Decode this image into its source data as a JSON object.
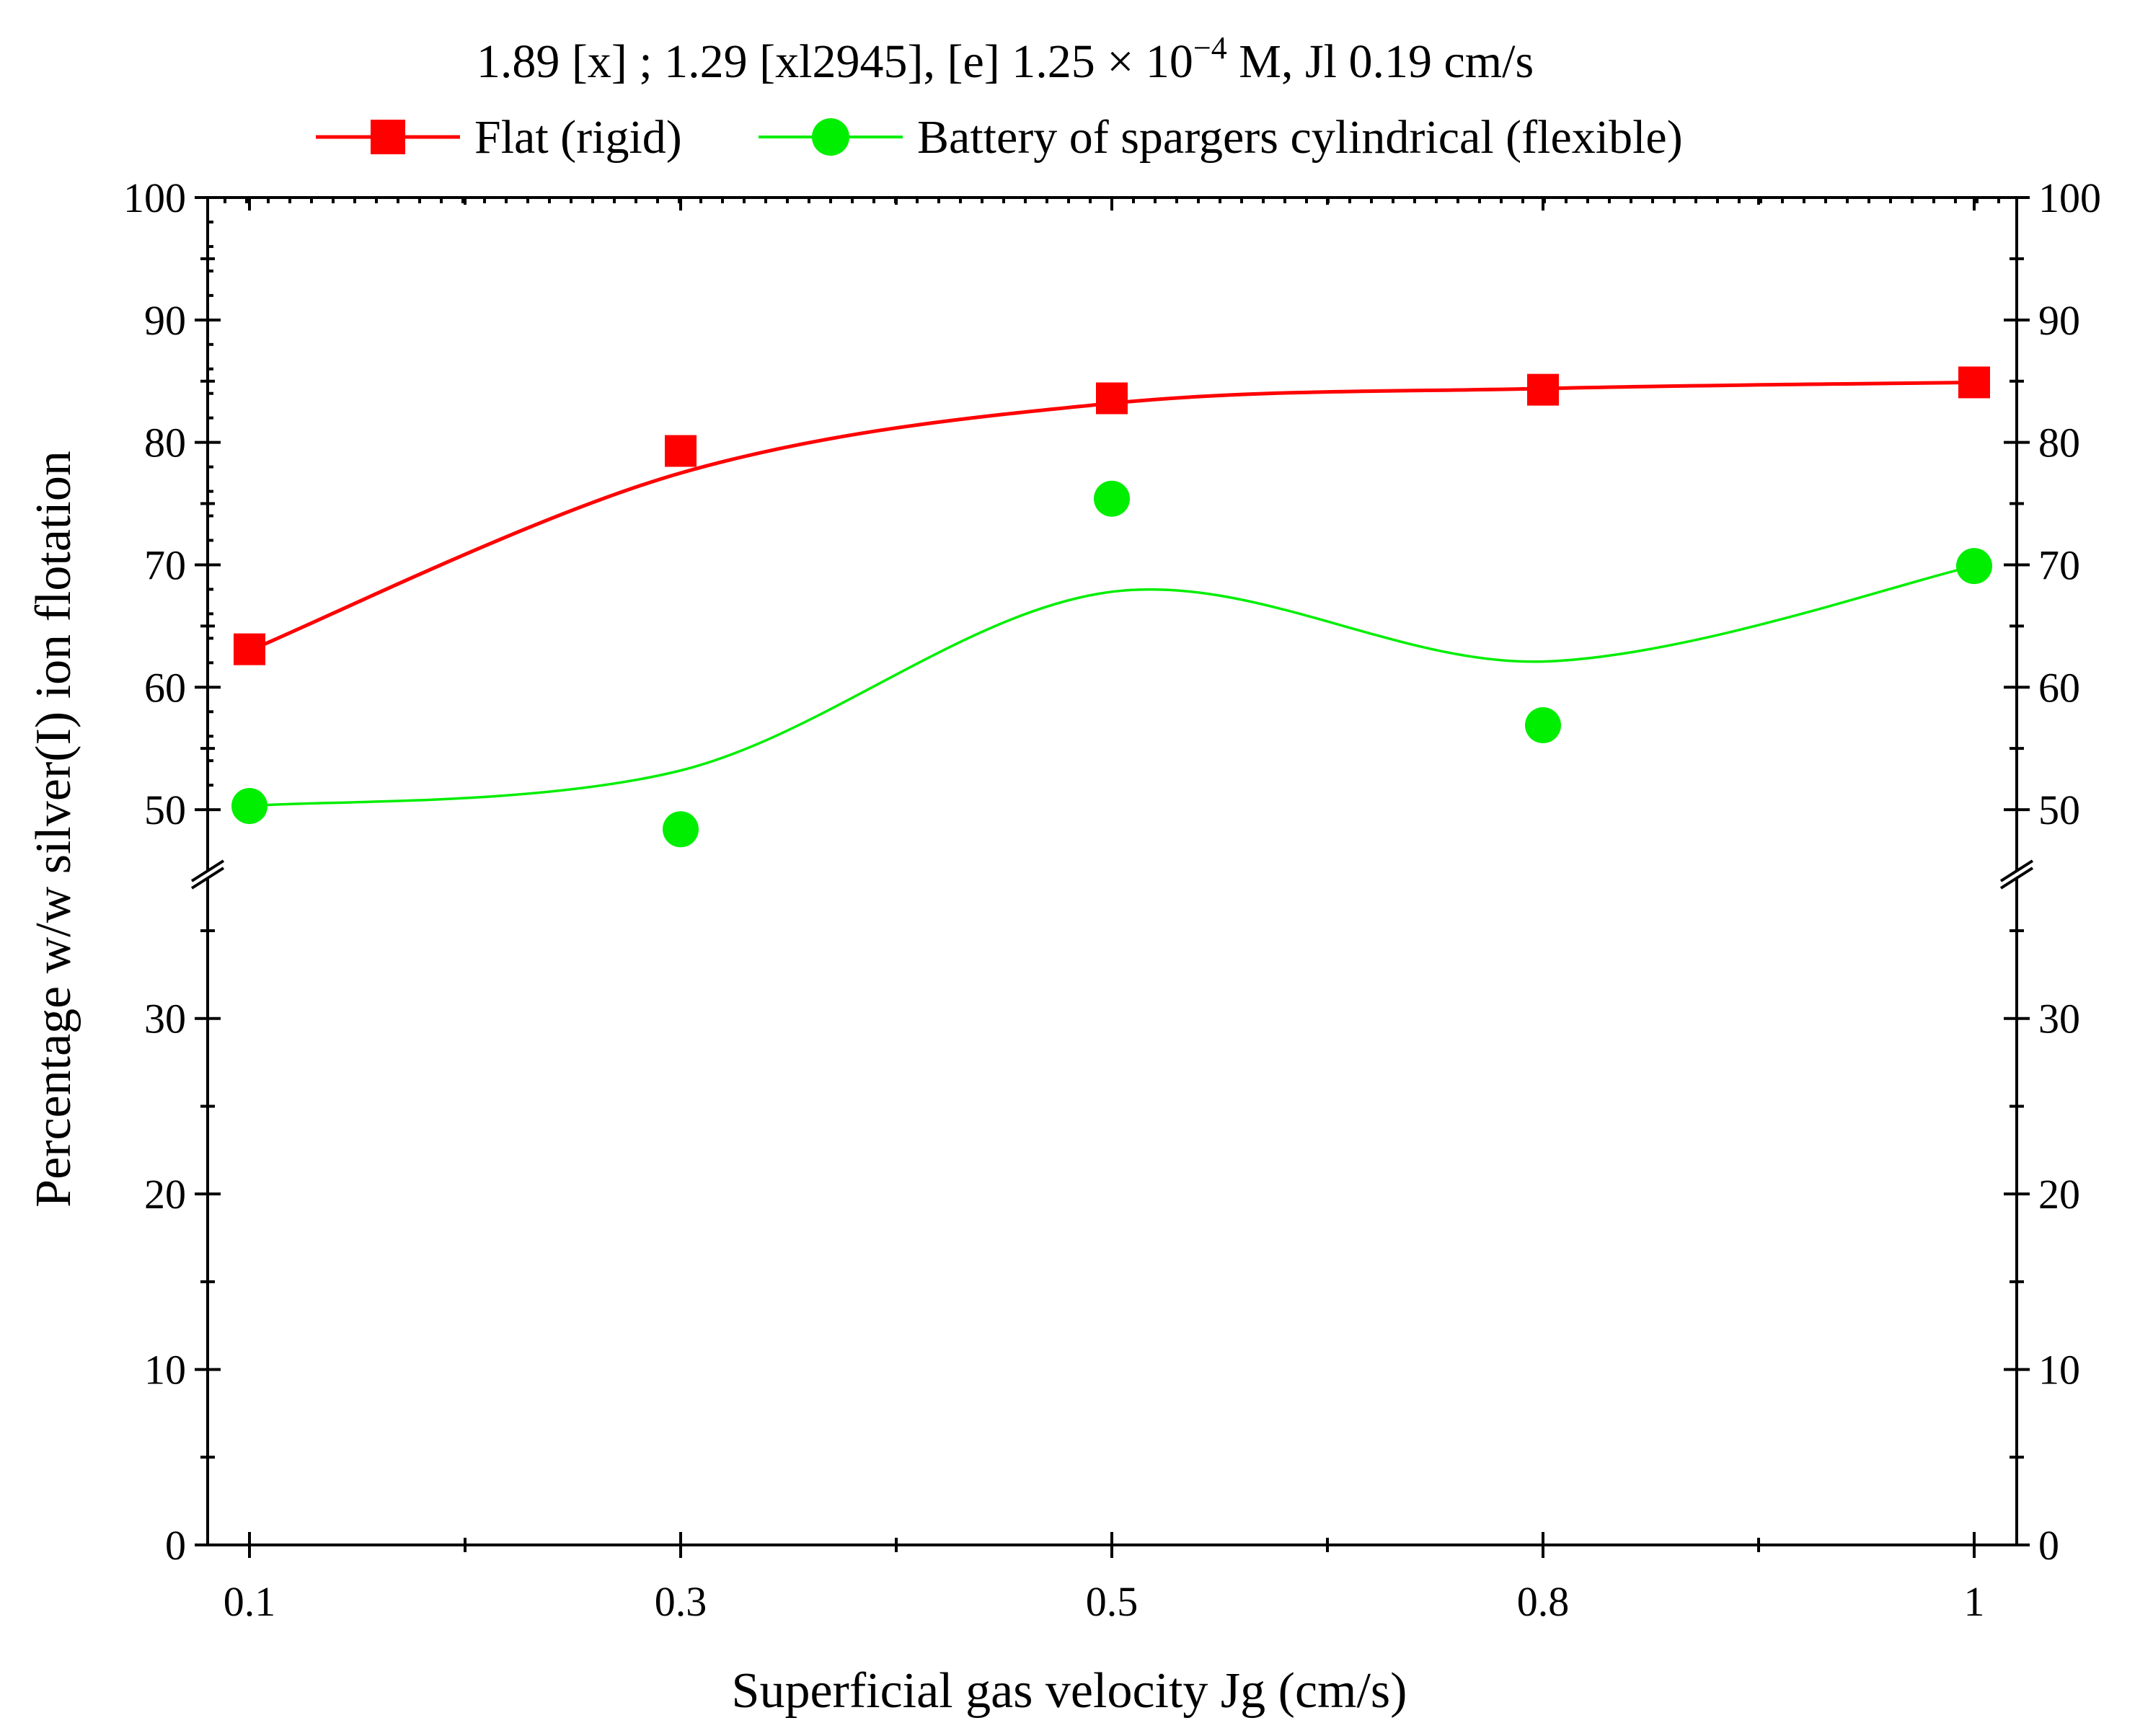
{
  "chart_data": {
    "type": "scatter",
    "title_main": "1.89 [x] ; 1.29 [xl2945], [e] 1.25 × 10",
    "title_sup": "−4",
    "title_tail": " M, Jl 0.19 cm/s",
    "xlabel": "Superficial gas velocity Jg (cm/s)",
    "ylabel": "Percentage w/w silver(I) ion flotation",
    "categories": [
      "0.1",
      "0.3",
      "0.5",
      "0.8",
      "1"
    ],
    "axis_break": [
      40,
      45
    ],
    "ylim": [
      0,
      100
    ],
    "yticks_lower": [
      "0",
      "10",
      "20",
      "30"
    ],
    "yticks_upper": [
      "50",
      "60",
      "70",
      "80",
      "90",
      "100"
    ],
    "yticks_lower_values": [
      0,
      10,
      20,
      30
    ],
    "yticks_upper_values": [
      50,
      60,
      70,
      80,
      90,
      100
    ],
    "series": [
      {
        "name": "Flat (rigid)",
        "marker": "square",
        "color": "#ff0000",
        "values": [
          63.1,
          79.3,
          83.6,
          84.3,
          84.9
        ],
        "fit": [
          63.0,
          77.5,
          83.2,
          84.4,
          84.9
        ]
      },
      {
        "name": "Battery of spargers cylindrical (flexible)",
        "marker": "circle",
        "color": "#00ee00",
        "values": [
          50.3,
          48.4,
          75.4,
          56.9,
          69.9
        ],
        "fit": [
          50.3,
          53.2,
          67.8,
          62.1,
          69.9
        ]
      }
    ]
  }
}
